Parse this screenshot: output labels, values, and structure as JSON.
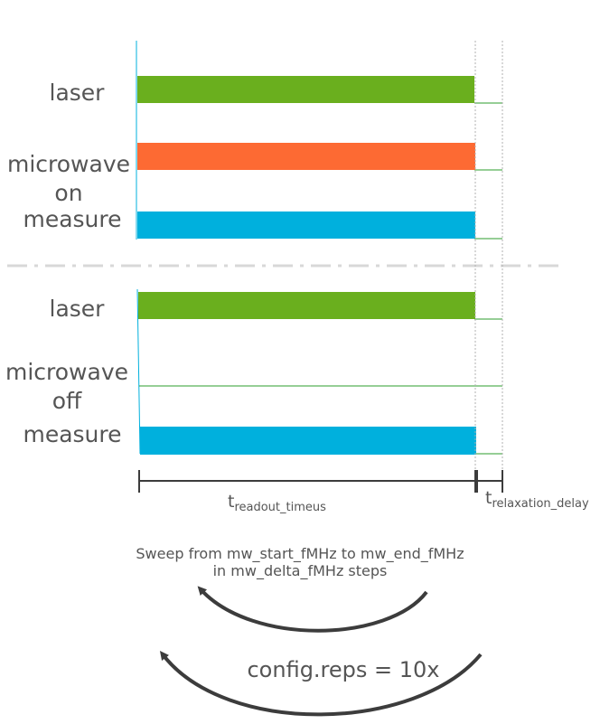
{
  "sections": [
    {
      "rows": [
        {
          "label": "laser",
          "color": "#6aaf1e"
        },
        {
          "label": "microwave on",
          "label_lines": [
            "microwave",
            "on"
          ],
          "color": "#fd6a33"
        },
        {
          "label": "measure",
          "color": "#00b0dd"
        }
      ]
    },
    {
      "rows": [
        {
          "label": "laser",
          "color": "#6aaf1e"
        },
        {
          "label": "microwave off",
          "label_lines": [
            "microwave",
            "off"
          ],
          "color": null
        },
        {
          "label": "measure",
          "color": "#00b0dd"
        }
      ]
    }
  ],
  "timing": {
    "readout": {
      "base": "t",
      "subscript": "readout_timeus"
    },
    "relaxation": {
      "base": "t",
      "subscript": "relaxation_delay"
    }
  },
  "sweep": {
    "line1": "Sweep from mw_start_fMHz to mw_end_fMHz",
    "line2": "in  mw_delta_fMHz steps"
  },
  "reps": {
    "text": "config.reps = 10x"
  },
  "colors": {
    "laser": "#6aaf1e",
    "microwave": "#fd6a33",
    "measure": "#00b0dd",
    "baseline": "#2e9e2e",
    "text": "#555555",
    "separator": "#d8d8d8",
    "arrow": "#3c3c3c"
  },
  "icons": {
    "repeat_arrows": "curved-arrow-icon"
  }
}
